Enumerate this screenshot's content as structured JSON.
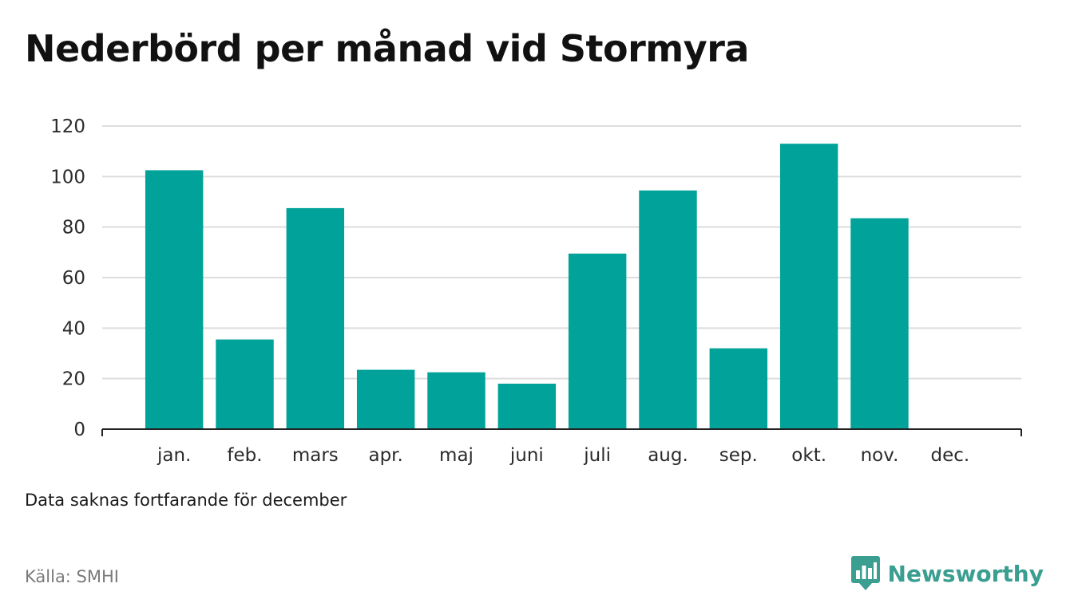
{
  "colors": {
    "bar": "#00a299",
    "grid": "#dddddd",
    "axis": "#222222",
    "brand": "#3a9e91"
  },
  "note": "Data saknas fortfarande för december",
  "source": "Källa: SMHI",
  "brand": {
    "name": "Newsworthy",
    "icon": "newsworthy-logo-icon"
  },
  "chart_data": {
    "type": "bar",
    "title": "Nederbörd per månad vid Stormyra",
    "xlabel": "",
    "ylabel": "",
    "categories": [
      "jan.",
      "feb.",
      "mars",
      "apr.",
      "maj",
      "juni",
      "juli",
      "aug.",
      "sep.",
      "okt.",
      "nov.",
      "dec."
    ],
    "values": [
      102.5,
      35.5,
      87.5,
      23.5,
      22.5,
      18,
      69.5,
      94.5,
      32,
      113,
      83.5,
      null
    ],
    "ylim": [
      0,
      120
    ],
    "yticks": [
      0,
      20,
      40,
      60,
      80,
      100,
      120
    ],
    "grid": true,
    "legend": "none"
  }
}
